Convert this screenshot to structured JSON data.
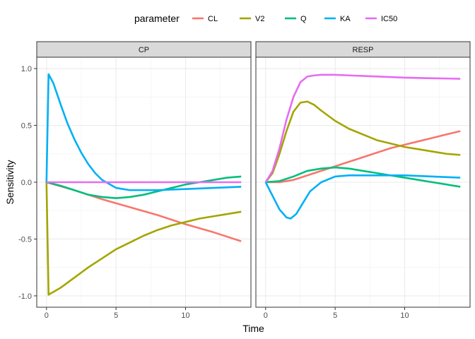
{
  "chart_data": {
    "type": "line",
    "xlabel": "Time",
    "ylabel": "Sensitivity",
    "xlim": [
      -0.7,
      14.7
    ],
    "ylim": [
      -1.1,
      1.1
    ],
    "x_ticks": [
      0,
      5,
      10
    ],
    "y_ticks": [
      -1.0,
      -0.5,
      0.0,
      0.5,
      1.0
    ],
    "y_tick_labels": [
      "-1.0",
      "-0.5",
      "0.0",
      "0.5",
      "1.0"
    ],
    "grid": true,
    "legend": {
      "title": "parameter",
      "position": "top",
      "entries": [
        "CL",
        "V2",
        "Q",
        "KA",
        "IC50"
      ]
    },
    "colors": {
      "CL": "#F8766D",
      "V2": "#A3A500",
      "Q": "#00BF7D",
      "KA": "#00B0F6",
      "IC50": "#E76BF3"
    },
    "panels": [
      {
        "label": "CP",
        "series": [
          {
            "name": "CL",
            "x": [
              0,
              2,
              4,
              6,
              8,
              10,
              12,
              14
            ],
            "y": [
              0,
              -0.07,
              -0.15,
              -0.22,
              -0.29,
              -0.37,
              -0.44,
              -0.52
            ]
          },
          {
            "name": "V2",
            "x": [
              0,
              0.15,
              1,
              2,
              3,
              4,
              5,
              6,
              7,
              8,
              9,
              10,
              11,
              12,
              13,
              14
            ],
            "y": [
              0,
              -0.99,
              -0.93,
              -0.84,
              -0.75,
              -0.67,
              -0.59,
              -0.53,
              -0.47,
              -0.42,
              -0.38,
              -0.35,
              -0.32,
              -0.3,
              -0.28,
              -0.26
            ]
          },
          {
            "name": "Q",
            "x": [
              0,
              1,
              2,
              3,
              4,
              5,
              6,
              7,
              8,
              9,
              10,
              11,
              12,
              13,
              14
            ],
            "y": [
              0,
              -0.03,
              -0.07,
              -0.11,
              -0.13,
              -0.14,
              -0.13,
              -0.11,
              -0.08,
              -0.05,
              -0.02,
              0.0,
              0.02,
              0.04,
              0.05
            ]
          },
          {
            "name": "KA",
            "x": [
              0,
              0.15,
              0.5,
              1,
              1.5,
              2,
              2.5,
              3,
              3.5,
              4,
              5,
              6,
              7,
              8,
              10,
              12,
              14
            ],
            "y": [
              0,
              0.95,
              0.87,
              0.69,
              0.52,
              0.38,
              0.26,
              0.16,
              0.08,
              0.02,
              -0.05,
              -0.07,
              -0.07,
              -0.07,
              -0.06,
              -0.05,
              -0.04
            ]
          },
          {
            "name": "IC50",
            "x": [
              0,
              14
            ],
            "y": [
              0,
              0
            ]
          }
        ]
      },
      {
        "label": "RESP",
        "series": [
          {
            "name": "CL",
            "x": [
              0,
              1,
              2,
              3,
              4,
              5,
              6,
              7,
              8,
              9,
              10,
              11,
              12,
              13,
              14
            ],
            "y": [
              0,
              0.0,
              0.02,
              0.06,
              0.1,
              0.14,
              0.18,
              0.22,
              0.26,
              0.3,
              0.33,
              0.36,
              0.39,
              0.42,
              0.45
            ]
          },
          {
            "name": "V2",
            "x": [
              0,
              0.5,
              1,
              1.5,
              2,
              2.5,
              3,
              3.5,
              4,
              5,
              6,
              7,
              8,
              9,
              10,
              11,
              12,
              13,
              14
            ],
            "y": [
              0,
              0.08,
              0.25,
              0.45,
              0.62,
              0.7,
              0.71,
              0.68,
              0.63,
              0.54,
              0.47,
              0.42,
              0.37,
              0.34,
              0.31,
              0.29,
              0.27,
              0.25,
              0.24
            ]
          },
          {
            "name": "Q",
            "x": [
              0,
              1,
              2,
              3,
              4,
              5,
              6,
              7,
              8,
              9,
              10,
              11,
              12,
              13,
              14
            ],
            "y": [
              0,
              0.01,
              0.05,
              0.1,
              0.12,
              0.13,
              0.12,
              0.1,
              0.08,
              0.06,
              0.04,
              0.02,
              0.0,
              -0.02,
              -0.04
            ]
          },
          {
            "name": "KA",
            "x": [
              0,
              0.5,
              1,
              1.5,
              1.8,
              2.2,
              2.7,
              3.2,
              4,
              5,
              6,
              7,
              8,
              10,
              12,
              14
            ],
            "y": [
              0,
              -0.12,
              -0.24,
              -0.31,
              -0.32,
              -0.28,
              -0.18,
              -0.08,
              0.0,
              0.05,
              0.06,
              0.06,
              0.06,
              0.06,
              0.05,
              0.04
            ]
          },
          {
            "name": "IC50",
            "x": [
              0,
              0.5,
              1,
              1.5,
              2,
              2.5,
              3,
              3.5,
              4,
              5,
              6,
              8,
              10,
              12,
              14
            ],
            "y": [
              0,
              0.1,
              0.3,
              0.55,
              0.75,
              0.88,
              0.93,
              0.94,
              0.945,
              0.945,
              0.94,
              0.93,
              0.92,
              0.915,
              0.91
            ]
          }
        ]
      }
    ]
  }
}
